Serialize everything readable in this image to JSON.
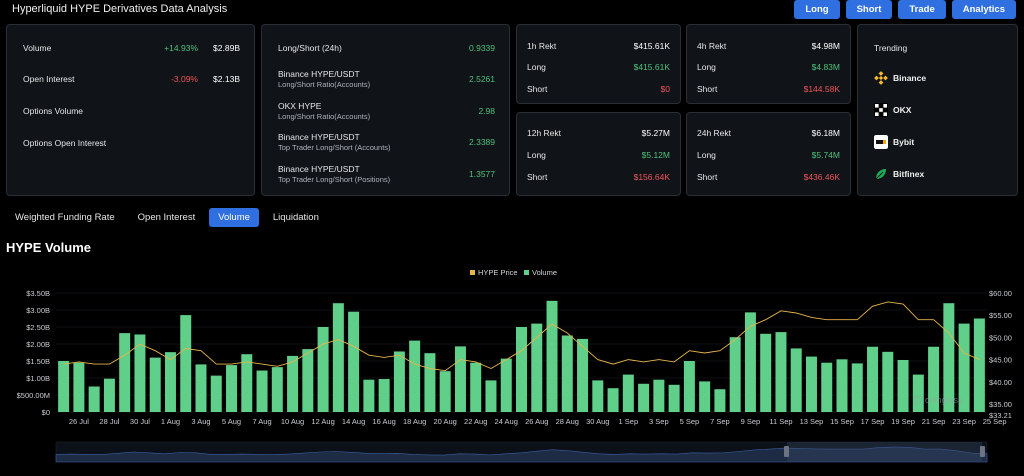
{
  "header": {
    "title": "Hyperliquid HYPE Derivatives Data Analysis",
    "nav": [
      "Long",
      "Short",
      "Trade",
      "Analytics"
    ]
  },
  "market": [
    {
      "label": "Volume",
      "change": "+14.93%",
      "change_dir": "pos",
      "value": "$2.89B"
    },
    {
      "label": "Open Interest",
      "change": "-3.09%",
      "change_dir": "neg",
      "value": "$2.13B"
    },
    {
      "label": "Options Volume",
      "change": "",
      "change_dir": "",
      "value": ""
    },
    {
      "label": "Options Open Interest",
      "change": "",
      "change_dir": "",
      "value": ""
    }
  ],
  "ratios": [
    {
      "label": "Long/Short (24h)",
      "sub": "",
      "value": "0.9339"
    },
    {
      "label": "Binance HYPE/USDT",
      "sub": "Long/Short Ratio(Accounts)",
      "value": "2.5261"
    },
    {
      "label": "OKX HYPE",
      "sub": "Long/Short Ratio(Accounts)",
      "value": "2.98"
    },
    {
      "label": "Binance HYPE/USDT",
      "sub": "Top Trader Long/Short (Accounts)",
      "value": "2.3389"
    },
    {
      "label": "Binance HYPE/USDT",
      "sub": "Top Trader Long/Short (Positions)",
      "value": "1.3577"
    }
  ],
  "rekt": [
    {
      "period": "1h Rekt",
      "total": "$415.61K",
      "long_label": "Long",
      "long": "$415.61K",
      "short_label": "Short",
      "short": "$0"
    },
    {
      "period": "4h Rekt",
      "total": "$4.98M",
      "long_label": "Long",
      "long": "$4.83M",
      "short_label": "Short",
      "short": "$144.58K"
    },
    {
      "period": "12h Rekt",
      "total": "$5.27M",
      "long_label": "Long",
      "long": "$5.12M",
      "short_label": "Short",
      "short": "$156.64K"
    },
    {
      "period": "24h Rekt",
      "total": "$6.18M",
      "long_label": "Long",
      "long": "$5.74M",
      "short_label": "Short",
      "short": "$436.46K"
    }
  ],
  "trending": {
    "title": "Trending",
    "items": [
      {
        "name": "Binance",
        "icon": "binance-icon"
      },
      {
        "name": "OKX",
        "icon": "okx-icon"
      },
      {
        "name": "Bybit",
        "icon": "bybit-icon"
      },
      {
        "name": "Bitfinex",
        "icon": "bitfinex-icon"
      }
    ]
  },
  "tabs": [
    "Weighted Funding Rate",
    "Open Interest",
    "Volume",
    "Liquidation"
  ],
  "active_tab": "Volume",
  "section_title": "HYPE Volume",
  "colors": {
    "volume": "#5fcf8a",
    "price": "#e7b54b",
    "accent": "#2f6fe0",
    "pos": "#4ec27c",
    "neg": "#f0545a"
  },
  "chart_data": {
    "type": "bar",
    "legend": [
      "HYPE Price",
      "Volume"
    ],
    "legend_position": "top-center",
    "x_tick_labels": [
      "26 Jul",
      "28 Jul",
      "30 Jul",
      "1 Aug",
      "3 Aug",
      "5 Aug",
      "7 Aug",
      "10 Aug",
      "12 Aug",
      "14 Aug",
      "16 Aug",
      "18 Aug",
      "20 Aug",
      "22 Aug",
      "24 Aug",
      "26 Aug",
      "28 Aug",
      "30 Aug",
      "1 Sep",
      "3 Sep",
      "5 Sep",
      "7 Sep",
      "9 Sep",
      "11 Sep",
      "13 Sep",
      "15 Sep",
      "17 Sep",
      "19 Sep",
      "21 Sep",
      "23 Sep",
      "25 Sep"
    ],
    "y_left_ticks": [
      "$0",
      "$500.00M",
      "$1.00B",
      "$1.50B",
      "$2.00B",
      "$2.50B",
      "$3.00B",
      "$3.50B"
    ],
    "y_left_range": [
      0,
      3.5
    ],
    "y_right_ticks": [
      "$35.00",
      "$40.00",
      "$45.00",
      "$50.00",
      "$55.00",
      "$60.00"
    ],
    "y_right_range": [
      33.21,
      60
    ],
    "y_right_min_label": "$33.21",
    "watermark": "coinglass",
    "series": [
      {
        "name": "Volume",
        "unit": "B",
        "values": [
          1.5,
          1.45,
          0.75,
          0.98,
          2.32,
          2.28,
          1.6,
          1.76,
          2.85,
          1.4,
          1.07,
          1.38,
          1.7,
          1.22,
          1.32,
          1.65,
          1.85,
          2.5,
          3.2,
          2.95,
          0.95,
          0.97,
          1.78,
          2.1,
          1.73,
          1.2,
          1.93,
          1.45,
          0.93,
          1.57,
          2.5,
          2.6,
          3.27,
          2.25,
          2.15,
          0.93,
          0.7,
          1.1,
          0.83,
          0.95,
          0.8,
          1.5,
          0.9,
          0.67,
          2.2,
          2.93,
          2.3,
          2.35,
          1.87,
          1.63,
          1.45,
          1.55,
          1.43,
          1.92,
          1.77,
          1.53,
          1.1,
          1.92,
          3.2,
          2.6,
          2.75
        ]
      },
      {
        "name": "HYPE Price",
        "unit": "$",
        "values": [
          44,
          44.5,
          44,
          44,
          46,
          48.5,
          47,
          45,
          47.5,
          47,
          44,
          44,
          44.5,
          44,
          43.5,
          44.5,
          46.5,
          48.5,
          49.5,
          48,
          46,
          45.5,
          46,
          44,
          43,
          42.5,
          45,
          44.5,
          43,
          45,
          47,
          50,
          53,
          51,
          48,
          45,
          44,
          45,
          44.5,
          45,
          44.5,
          47,
          46.5,
          47,
          49.5,
          52.5,
          54,
          56,
          55.5,
          54.5,
          54,
          54,
          54,
          57,
          58,
          57.5,
          54,
          54,
          51,
          46.5,
          45
        ]
      }
    ]
  }
}
